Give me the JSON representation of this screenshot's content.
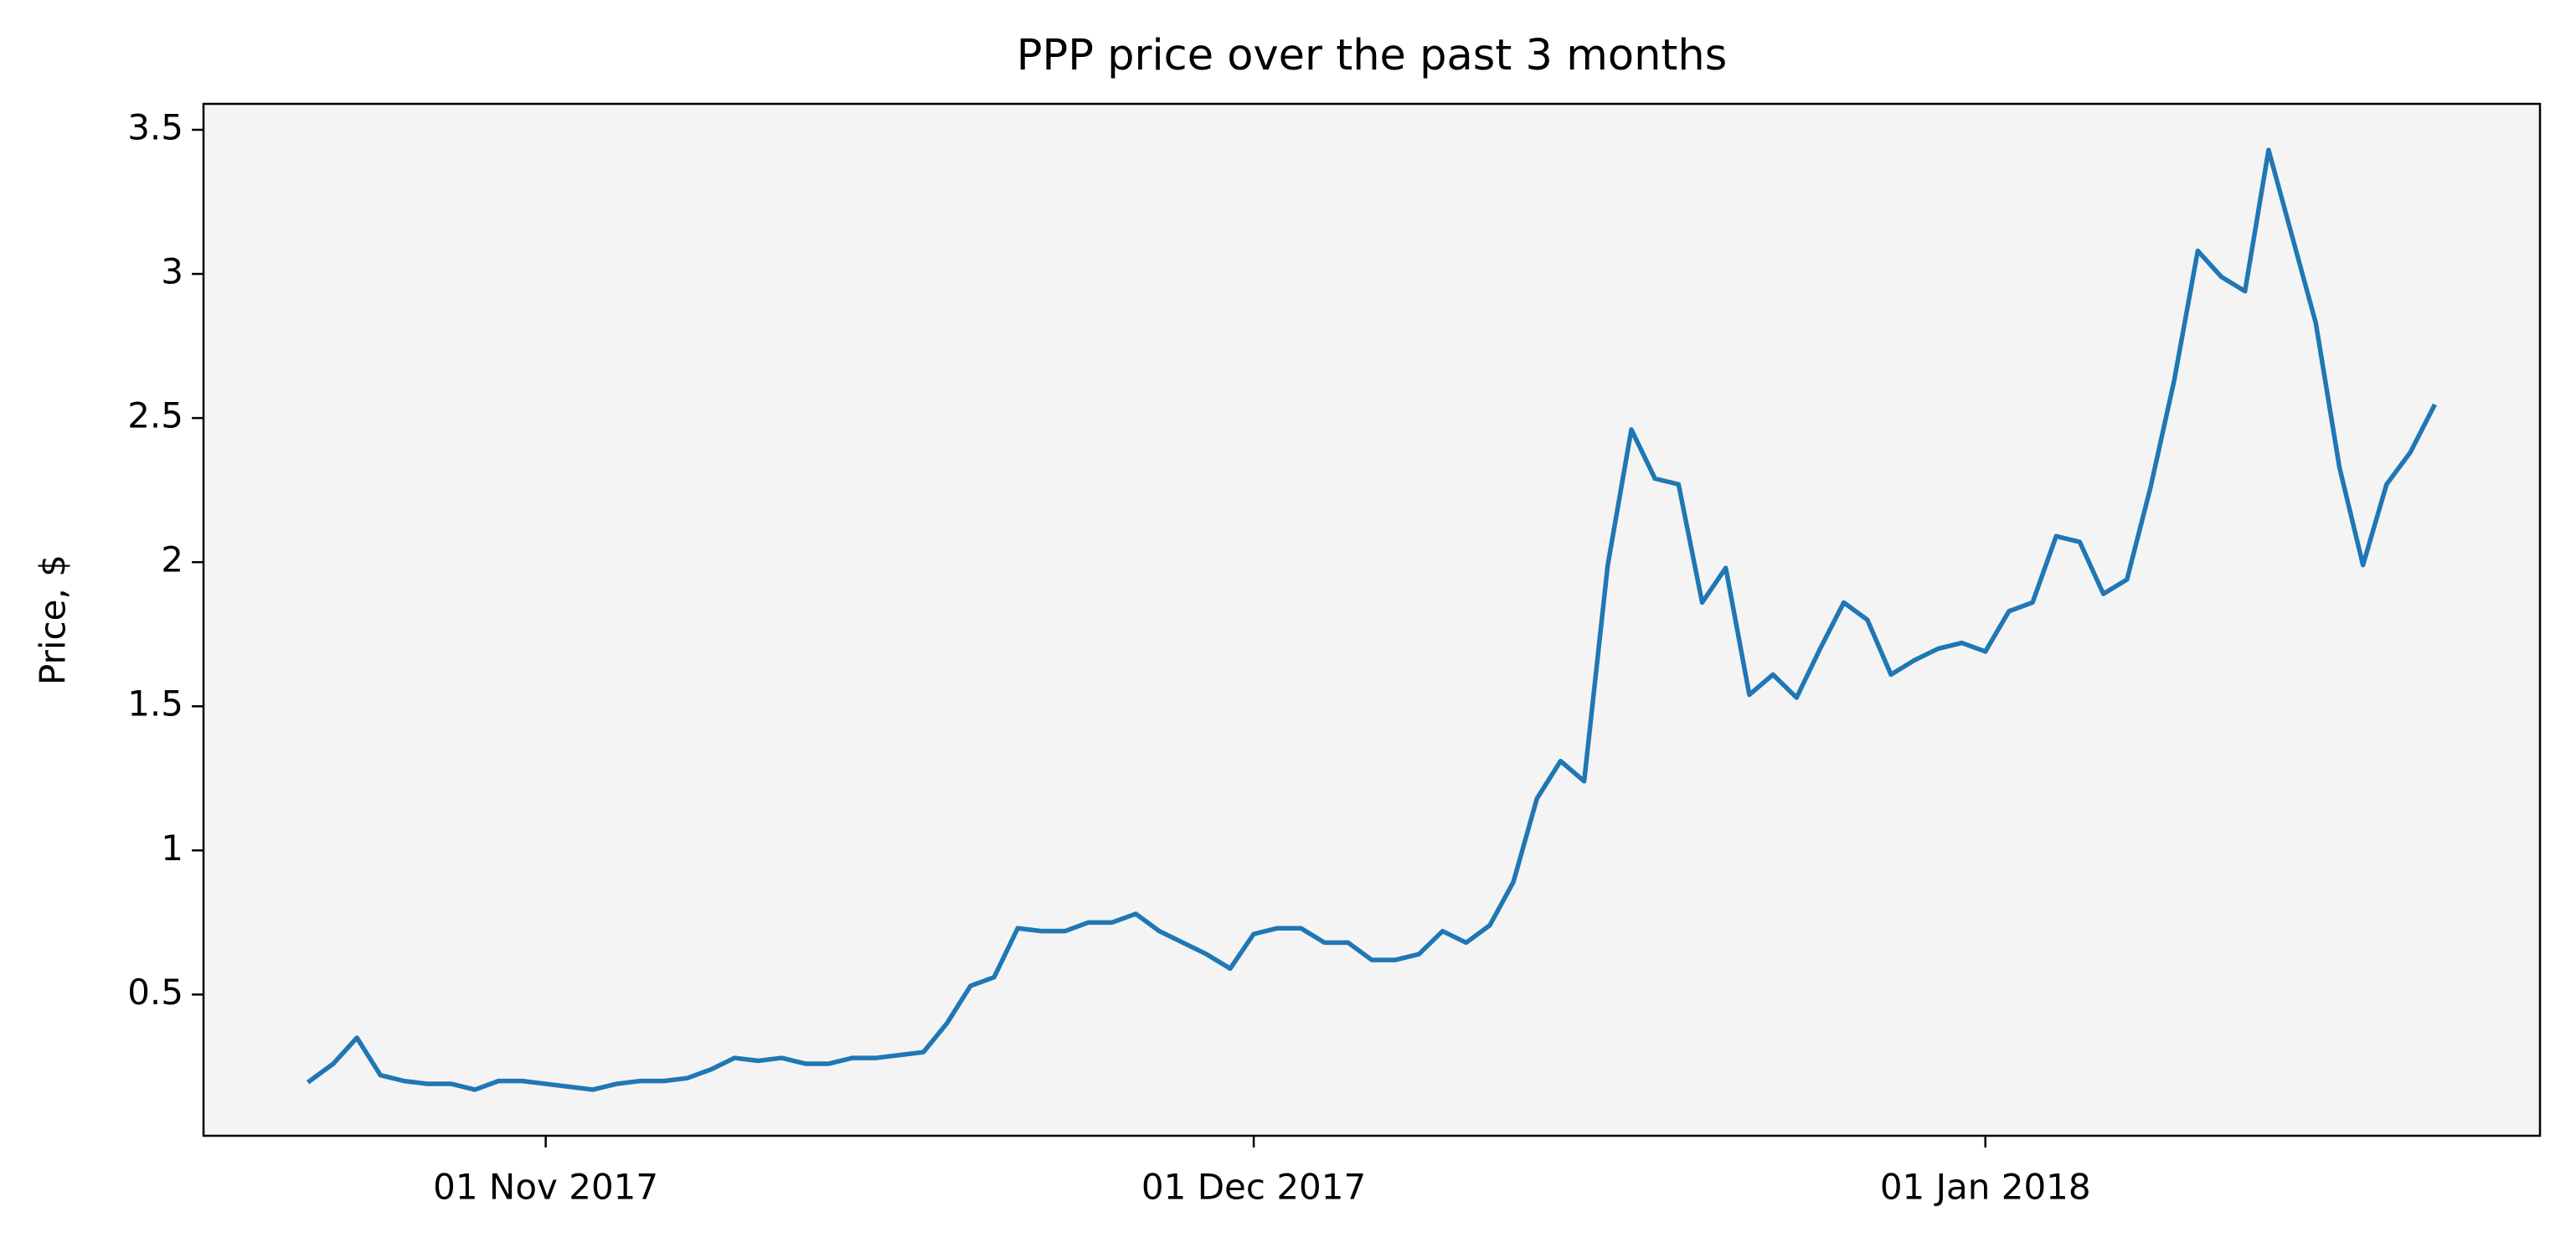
{
  "chart_data": {
    "type": "line",
    "title": "PPP price over the past 3 months",
    "y_label": "Price, $",
    "color": "#1f77b4",
    "x": [
      "2017-10-22",
      "2017-10-23",
      "2017-10-24",
      "2017-10-25",
      "2017-10-26",
      "2017-10-27",
      "2017-10-28",
      "2017-10-29",
      "2017-10-30",
      "2017-10-31",
      "2017-11-01",
      "2017-11-02",
      "2017-11-03",
      "2017-11-04",
      "2017-11-05",
      "2017-11-06",
      "2017-11-07",
      "2017-11-08",
      "2017-11-09",
      "2017-11-10",
      "2017-11-11",
      "2017-11-12",
      "2017-11-13",
      "2017-11-14",
      "2017-11-15",
      "2017-11-16",
      "2017-11-17",
      "2017-11-18",
      "2017-11-19",
      "2017-11-20",
      "2017-11-21",
      "2017-11-22",
      "2017-11-23",
      "2017-11-24",
      "2017-11-25",
      "2017-11-26",
      "2017-11-27",
      "2017-11-28",
      "2017-11-29",
      "2017-11-30",
      "2017-12-01",
      "2017-12-02",
      "2017-12-03",
      "2017-12-04",
      "2017-12-05",
      "2017-12-06",
      "2017-12-07",
      "2017-12-08",
      "2017-12-09",
      "2017-12-10",
      "2017-12-11",
      "2017-12-12",
      "2017-12-13",
      "2017-12-14",
      "2017-12-15",
      "2017-12-16",
      "2017-12-17",
      "2017-12-18",
      "2017-12-19",
      "2017-12-20",
      "2017-12-21",
      "2017-12-22",
      "2017-12-23",
      "2017-12-24",
      "2017-12-25",
      "2017-12-26",
      "2017-12-27",
      "2017-12-28",
      "2017-12-29",
      "2017-12-30",
      "2017-12-31",
      "2018-01-01",
      "2018-01-02",
      "2018-01-03",
      "2018-01-04",
      "2018-01-05",
      "2018-01-06",
      "2018-01-07",
      "2018-01-08",
      "2018-01-09",
      "2018-01-10",
      "2018-01-11",
      "2018-01-12",
      "2018-01-13",
      "2018-01-14",
      "2018-01-15",
      "2018-01-16",
      "2018-01-17",
      "2018-01-18",
      "2018-01-19",
      "2018-01-20"
    ],
    "values": [
      0.2,
      0.26,
      0.35,
      0.22,
      0.2,
      0.19,
      0.19,
      0.17,
      0.2,
      0.2,
      0.19,
      0.18,
      0.17,
      0.19,
      0.2,
      0.2,
      0.21,
      0.24,
      0.28,
      0.27,
      0.28,
      0.26,
      0.26,
      0.28,
      0.28,
      0.29,
      0.3,
      0.4,
      0.53,
      0.56,
      0.73,
      0.72,
      0.72,
      0.75,
      0.75,
      0.78,
      0.72,
      0.68,
      0.64,
      0.59,
      0.71,
      0.73,
      0.73,
      0.68,
      0.68,
      0.62,
      0.62,
      0.64,
      0.72,
      0.68,
      0.74,
      0.89,
      1.18,
      1.31,
      1.24,
      1.99,
      2.46,
      2.29,
      2.27,
      1.86,
      1.98,
      1.54,
      1.61,
      1.53,
      1.7,
      1.86,
      1.8,
      1.61,
      1.66,
      1.7,
      1.72,
      1.69,
      1.83,
      1.86,
      2.09,
      2.07,
      1.89,
      1.94,
      2.26,
      2.63,
      3.08,
      2.99,
      2.94,
      3.43,
      3.13,
      2.83,
      2.33,
      1.99,
      2.27,
      2.38,
      2.54
    ],
    "xlim": [
      "2017-10-17T12:00:00Z",
      "2018-01-24T12:00:00Z"
    ],
    "xticks": [
      {
        "value": "2017-11-01",
        "label": "01 Nov 2017"
      },
      {
        "value": "2017-12-01",
        "label": "01 Dec 2017"
      },
      {
        "value": "2018-01-01",
        "label": "01 Jan 2018"
      }
    ],
    "ylim": [
      0.01,
      3.59
    ],
    "yticks": [
      0.5,
      1.0,
      1.5,
      2.0,
      2.5,
      3.0,
      3.5
    ],
    "plot_background": "#f4f4f4",
    "grid": false
  }
}
